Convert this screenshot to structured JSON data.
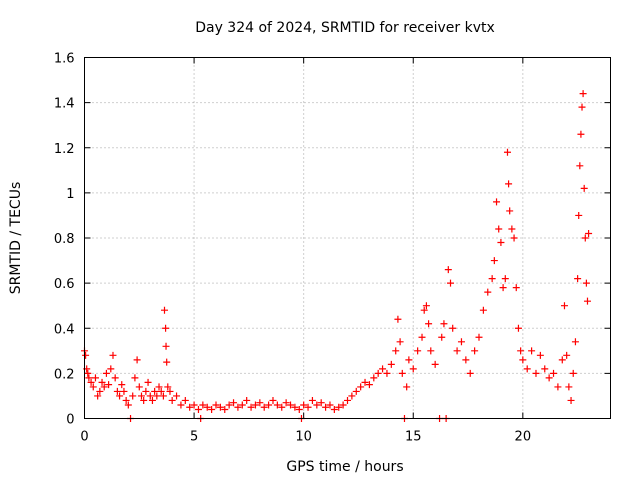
{
  "chart_data": {
    "type": "scatter",
    "title": "Day 324 of 2024, SRMTID for receiver kvtx",
    "xlabel": "GPS time / hours",
    "ylabel": "SRMTID / TECUs",
    "xlim": [
      0,
      24
    ],
    "ylim": [
      0,
      1.6
    ],
    "xticks": [
      0,
      5,
      10,
      15,
      20
    ],
    "xtick_labels": [
      "0",
      "5",
      "10",
      "15",
      "20"
    ],
    "yticks": [
      0,
      0.2,
      0.4,
      0.6,
      0.8,
      1.0,
      1.2,
      1.4,
      1.6
    ],
    "ytick_labels": [
      "0",
      "0.2",
      "0.4",
      "0.6",
      "0.8",
      "1",
      "1.2",
      "1.4",
      "1.6"
    ],
    "grid": true,
    "marker": "+",
    "color": "#ff0000",
    "series": [
      {
        "name": "SRMTID",
        "points": [
          [
            0.0,
            0.3
          ],
          [
            0.05,
            0.28
          ],
          [
            0.1,
            0.22
          ],
          [
            0.15,
            0.2
          ],
          [
            0.2,
            0.18
          ],
          [
            0.3,
            0.16
          ],
          [
            0.4,
            0.14
          ],
          [
            0.5,
            0.18
          ],
          [
            0.6,
            0.1
          ],
          [
            0.7,
            0.12
          ],
          [
            0.8,
            0.16
          ],
          [
            0.9,
            0.14
          ],
          [
            1.0,
            0.2
          ],
          [
            1.1,
            0.15
          ],
          [
            1.2,
            0.22
          ],
          [
            1.3,
            0.28
          ],
          [
            1.4,
            0.18
          ],
          [
            1.5,
            0.12
          ],
          [
            1.6,
            0.1
          ],
          [
            1.7,
            0.15
          ],
          [
            1.8,
            0.12
          ],
          [
            1.9,
            0.08
          ],
          [
            2.0,
            0.06
          ],
          [
            2.1,
            0.0
          ],
          [
            2.2,
            0.1
          ],
          [
            2.3,
            0.18
          ],
          [
            2.4,
            0.26
          ],
          [
            2.5,
            0.14
          ],
          [
            2.6,
            0.1
          ],
          [
            2.7,
            0.08
          ],
          [
            2.8,
            0.12
          ],
          [
            2.9,
            0.16
          ],
          [
            3.0,
            0.1
          ],
          [
            3.1,
            0.08
          ],
          [
            3.2,
            0.12
          ],
          [
            3.3,
            0.1
          ],
          [
            3.4,
            0.14
          ],
          [
            3.5,
            0.12
          ],
          [
            3.6,
            0.1
          ],
          [
            3.65,
            0.48
          ],
          [
            3.7,
            0.4
          ],
          [
            3.72,
            0.32
          ],
          [
            3.75,
            0.25
          ],
          [
            3.8,
            0.14
          ],
          [
            3.9,
            0.12
          ],
          [
            4.0,
            0.08
          ],
          [
            4.2,
            0.1
          ],
          [
            4.4,
            0.06
          ],
          [
            4.6,
            0.08
          ],
          [
            4.8,
            0.05
          ],
          [
            5.0,
            0.06
          ],
          [
            5.2,
            0.04
          ],
          [
            5.3,
            0.0
          ],
          [
            5.4,
            0.06
          ],
          [
            5.6,
            0.05
          ],
          [
            5.8,
            0.04
          ],
          [
            6.0,
            0.06
          ],
          [
            6.2,
            0.05
          ],
          [
            6.4,
            0.04
          ],
          [
            6.6,
            0.06
          ],
          [
            6.8,
            0.07
          ],
          [
            7.0,
            0.05
          ],
          [
            7.2,
            0.06
          ],
          [
            7.4,
            0.08
          ],
          [
            7.6,
            0.05
          ],
          [
            7.8,
            0.06
          ],
          [
            8.0,
            0.07
          ],
          [
            8.2,
            0.05
          ],
          [
            8.4,
            0.06
          ],
          [
            8.6,
            0.08
          ],
          [
            8.8,
            0.06
          ],
          [
            9.0,
            0.05
          ],
          [
            9.2,
            0.07
          ],
          [
            9.4,
            0.06
          ],
          [
            9.6,
            0.05
          ],
          [
            9.8,
            0.04
          ],
          [
            9.9,
            0.0
          ],
          [
            10.0,
            0.06
          ],
          [
            10.2,
            0.05
          ],
          [
            10.4,
            0.08
          ],
          [
            10.6,
            0.06
          ],
          [
            10.8,
            0.07
          ],
          [
            11.0,
            0.05
          ],
          [
            11.2,
            0.06
          ],
          [
            11.4,
            0.04
          ],
          [
            11.6,
            0.05
          ],
          [
            11.8,
            0.06
          ],
          [
            12.0,
            0.08
          ],
          [
            12.2,
            0.1
          ],
          [
            12.4,
            0.12
          ],
          [
            12.6,
            0.14
          ],
          [
            12.8,
            0.16
          ],
          [
            13.0,
            0.15
          ],
          [
            13.2,
            0.18
          ],
          [
            13.4,
            0.2
          ],
          [
            13.6,
            0.22
          ],
          [
            13.8,
            0.2
          ],
          [
            14.0,
            0.24
          ],
          [
            14.2,
            0.3
          ],
          [
            14.3,
            0.44
          ],
          [
            14.4,
            0.34
          ],
          [
            14.5,
            0.2
          ],
          [
            14.6,
            0.0
          ],
          [
            14.7,
            0.14
          ],
          [
            14.8,
            0.26
          ],
          [
            15.0,
            0.22
          ],
          [
            15.2,
            0.3
          ],
          [
            15.4,
            0.36
          ],
          [
            15.5,
            0.48
          ],
          [
            15.6,
            0.5
          ],
          [
            15.7,
            0.42
          ],
          [
            15.8,
            0.3
          ],
          [
            16.0,
            0.24
          ],
          [
            16.2,
            0.0
          ],
          [
            16.3,
            0.36
          ],
          [
            16.4,
            0.42
          ],
          [
            16.5,
            0.0
          ],
          [
            16.6,
            0.66
          ],
          [
            16.7,
            0.6
          ],
          [
            16.8,
            0.4
          ],
          [
            17.0,
            0.3
          ],
          [
            17.2,
            0.34
          ],
          [
            17.4,
            0.26
          ],
          [
            17.6,
            0.2
          ],
          [
            17.8,
            0.3
          ],
          [
            18.0,
            0.36
          ],
          [
            18.2,
            0.48
          ],
          [
            18.4,
            0.56
          ],
          [
            18.6,
            0.62
          ],
          [
            18.7,
            0.7
          ],
          [
            18.8,
            0.96
          ],
          [
            18.9,
            0.84
          ],
          [
            19.0,
            0.78
          ],
          [
            19.1,
            0.58
          ],
          [
            19.2,
            0.62
          ],
          [
            19.3,
            1.18
          ],
          [
            19.35,
            1.04
          ],
          [
            19.4,
            0.92
          ],
          [
            19.5,
            0.84
          ],
          [
            19.6,
            0.8
          ],
          [
            19.7,
            0.58
          ],
          [
            19.8,
            0.4
          ],
          [
            19.9,
            0.3
          ],
          [
            20.0,
            0.26
          ],
          [
            20.2,
            0.22
          ],
          [
            20.4,
            0.3
          ],
          [
            20.6,
            0.2
          ],
          [
            20.8,
            0.28
          ],
          [
            21.0,
            0.22
          ],
          [
            21.2,
            0.18
          ],
          [
            21.4,
            0.2
          ],
          [
            21.6,
            0.14
          ],
          [
            21.8,
            0.26
          ],
          [
            21.9,
            0.5
          ],
          [
            22.0,
            0.28
          ],
          [
            22.1,
            0.14
          ],
          [
            22.2,
            0.08
          ],
          [
            22.3,
            0.2
          ],
          [
            22.4,
            0.34
          ],
          [
            22.5,
            0.62
          ],
          [
            22.55,
            0.9
          ],
          [
            22.6,
            1.12
          ],
          [
            22.65,
            1.26
          ],
          [
            22.7,
            1.38
          ],
          [
            22.75,
            1.44
          ],
          [
            22.8,
            1.02
          ],
          [
            22.85,
            0.8
          ],
          [
            22.9,
            0.6
          ],
          [
            22.95,
            0.52
          ],
          [
            23.0,
            0.82
          ]
        ]
      }
    ]
  }
}
